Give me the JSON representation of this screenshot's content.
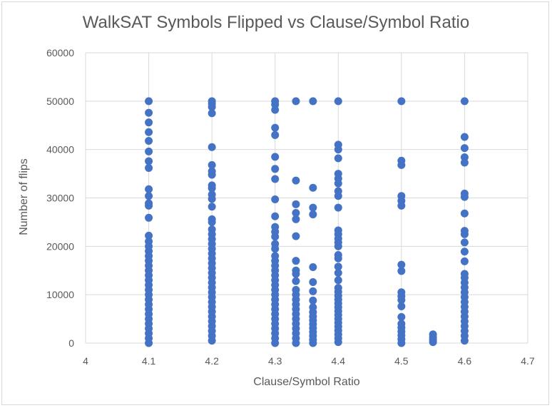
{
  "chart_data": {
    "type": "scatter",
    "title": "WalkSAT Symbols Flipped vs Clause/Symbol Ratio",
    "xlabel": "Clause/Symbol Ratio",
    "ylabel": "Number of flips",
    "xlim": [
      4,
      4.7
    ],
    "ylim": [
      0,
      60000
    ],
    "x_ticks": [
      "4",
      "4.1",
      "4.2",
      "4.3",
      "4.4",
      "4.5",
      "4.6",
      "4.7"
    ],
    "y_ticks": [
      "0",
      "10000",
      "20000",
      "30000",
      "40000",
      "50000",
      "60000"
    ],
    "grid": "major-both",
    "marker_color": "#4472C4",
    "series": [
      {
        "points": [
          [
            4.1,
            50000
          ],
          [
            4.1,
            47600
          ],
          [
            4.1,
            45600
          ],
          [
            4.1,
            43600
          ],
          [
            4.1,
            41800
          ],
          [
            4.1,
            39600
          ],
          [
            4.1,
            37600
          ],
          [
            4.1,
            36200
          ],
          [
            4.1,
            31800
          ],
          [
            4.1,
            30400
          ],
          [
            4.1,
            28900
          ],
          [
            4.1,
            28400
          ],
          [
            4.1,
            25900
          ],
          [
            4.1,
            22200
          ],
          [
            4.1,
            21000
          ],
          [
            4.1,
            20000
          ],
          [
            4.1,
            19000
          ],
          [
            4.1,
            18000
          ],
          [
            4.1,
            17000
          ],
          [
            4.1,
            16000
          ],
          [
            4.1,
            15000
          ],
          [
            4.1,
            14000
          ],
          [
            4.1,
            13000
          ],
          [
            4.1,
            12000
          ],
          [
            4.1,
            11000
          ],
          [
            4.1,
            10000
          ],
          [
            4.1,
            9000
          ],
          [
            4.1,
            8000
          ],
          [
            4.1,
            7000
          ],
          [
            4.1,
            6000
          ],
          [
            4.1,
            5000
          ],
          [
            4.1,
            4000
          ],
          [
            4.1,
            3000
          ],
          [
            4.1,
            2000
          ],
          [
            4.1,
            1000
          ],
          [
            4.1,
            0
          ],
          [
            4.2,
            50000
          ],
          [
            4.2,
            49500
          ],
          [
            4.2,
            48800
          ],
          [
            4.2,
            47500
          ],
          [
            4.2,
            40500
          ],
          [
            4.2,
            36800
          ],
          [
            4.2,
            35500
          ],
          [
            4.2,
            34800
          ],
          [
            4.2,
            32600
          ],
          [
            4.2,
            32000
          ],
          [
            4.2,
            30700
          ],
          [
            4.2,
            29800
          ],
          [
            4.2,
            28200
          ],
          [
            4.2,
            25600
          ],
          [
            4.2,
            25000
          ],
          [
            4.2,
            23500
          ],
          [
            4.2,
            22500
          ],
          [
            4.2,
            21500
          ],
          [
            4.2,
            20500
          ],
          [
            4.2,
            19500
          ],
          [
            4.2,
            18500
          ],
          [
            4.2,
            17500
          ],
          [
            4.2,
            16500
          ],
          [
            4.2,
            15500
          ],
          [
            4.2,
            14500
          ],
          [
            4.2,
            13500
          ],
          [
            4.2,
            12500
          ],
          [
            4.2,
            11500
          ],
          [
            4.2,
            10500
          ],
          [
            4.2,
            9500
          ],
          [
            4.2,
            8500
          ],
          [
            4.2,
            7500
          ],
          [
            4.2,
            6500
          ],
          [
            4.2,
            5500
          ],
          [
            4.2,
            4500
          ],
          [
            4.2,
            3500
          ],
          [
            4.2,
            2500
          ],
          [
            4.2,
            1500
          ],
          [
            4.2,
            500
          ],
          [
            4.3,
            50000
          ],
          [
            4.3,
            49300
          ],
          [
            4.3,
            48200
          ],
          [
            4.3,
            44500
          ],
          [
            4.3,
            43000
          ],
          [
            4.3,
            38500
          ],
          [
            4.3,
            36000
          ],
          [
            4.3,
            33900
          ],
          [
            4.3,
            29700
          ],
          [
            4.3,
            26200
          ],
          [
            4.3,
            24000
          ],
          [
            4.3,
            23000
          ],
          [
            4.3,
            22000
          ],
          [
            4.3,
            20500
          ],
          [
            4.3,
            19500
          ],
          [
            4.3,
            18000
          ],
          [
            4.3,
            17000
          ],
          [
            4.3,
            16000
          ],
          [
            4.3,
            15000
          ],
          [
            4.3,
            14000
          ],
          [
            4.3,
            13000
          ],
          [
            4.3,
            12000
          ],
          [
            4.3,
            11000
          ],
          [
            4.3,
            10000
          ],
          [
            4.3,
            9000
          ],
          [
            4.3,
            8000
          ],
          [
            4.3,
            7000
          ],
          [
            4.3,
            6000
          ],
          [
            4.3,
            5000
          ],
          [
            4.3,
            4000
          ],
          [
            4.3,
            3000
          ],
          [
            4.3,
            2000
          ],
          [
            4.3,
            1000
          ],
          [
            4.3,
            0
          ],
          [
            4.333,
            50000
          ],
          [
            4.333,
            33600
          ],
          [
            4.333,
            28700
          ],
          [
            4.333,
            26900
          ],
          [
            4.333,
            25600
          ],
          [
            4.333,
            22100
          ],
          [
            4.333,
            17000
          ],
          [
            4.333,
            15000
          ],
          [
            4.333,
            14300
          ],
          [
            4.333,
            12800
          ],
          [
            4.333,
            11000
          ],
          [
            4.333,
            10000
          ],
          [
            4.333,
            9000
          ],
          [
            4.333,
            8000
          ],
          [
            4.333,
            7000
          ],
          [
            4.333,
            6000
          ],
          [
            4.333,
            5000
          ],
          [
            4.333,
            4000
          ],
          [
            4.333,
            3000
          ],
          [
            4.333,
            2000
          ],
          [
            4.333,
            1000
          ],
          [
            4.333,
            0
          ],
          [
            4.36,
            50000
          ],
          [
            4.36,
            32100
          ],
          [
            4.36,
            28000
          ],
          [
            4.36,
            26600
          ],
          [
            4.36,
            15700
          ],
          [
            4.36,
            12600
          ],
          [
            4.36,
            10700
          ],
          [
            4.36,
            8800
          ],
          [
            4.36,
            7400
          ],
          [
            4.36,
            6400
          ],
          [
            4.36,
            5500
          ],
          [
            4.36,
            4700
          ],
          [
            4.36,
            3900
          ],
          [
            4.36,
            3100
          ],
          [
            4.36,
            2300
          ],
          [
            4.36,
            1500
          ],
          [
            4.36,
            700
          ],
          [
            4.36,
            0
          ],
          [
            4.4,
            50000
          ],
          [
            4.4,
            41000
          ],
          [
            4.4,
            40000
          ],
          [
            4.4,
            38200
          ],
          [
            4.4,
            35000
          ],
          [
            4.4,
            34000
          ],
          [
            4.4,
            33000
          ],
          [
            4.4,
            31400
          ],
          [
            4.4,
            30400
          ],
          [
            4.4,
            28000
          ],
          [
            4.4,
            23300
          ],
          [
            4.4,
            22500
          ],
          [
            4.4,
            21600
          ],
          [
            4.4,
            20800
          ],
          [
            4.4,
            20000
          ],
          [
            4.4,
            18200
          ],
          [
            4.4,
            17500
          ],
          [
            4.4,
            15800
          ],
          [
            4.4,
            14500
          ],
          [
            4.4,
            13000
          ],
          [
            4.4,
            11400
          ],
          [
            4.4,
            10600
          ],
          [
            4.4,
            9800
          ],
          [
            4.4,
            9000
          ],
          [
            4.4,
            8200
          ],
          [
            4.4,
            7400
          ],
          [
            4.4,
            6600
          ],
          [
            4.4,
            5800
          ],
          [
            4.4,
            5000
          ],
          [
            4.4,
            4200
          ],
          [
            4.4,
            3400
          ],
          [
            4.4,
            2600
          ],
          [
            4.4,
            1800
          ],
          [
            4.4,
            1000
          ],
          [
            4.4,
            200
          ],
          [
            4.5,
            50000
          ],
          [
            4.5,
            37700
          ],
          [
            4.5,
            36800
          ],
          [
            4.5,
            30400
          ],
          [
            4.5,
            29400
          ],
          [
            4.5,
            28400
          ],
          [
            4.5,
            16200
          ],
          [
            4.5,
            14900
          ],
          [
            4.5,
            10500
          ],
          [
            4.5,
            9700
          ],
          [
            4.5,
            8900
          ],
          [
            4.5,
            7600
          ],
          [
            4.5,
            5400
          ],
          [
            4.5,
            4000
          ],
          [
            4.5,
            3200
          ],
          [
            4.5,
            2400
          ],
          [
            4.5,
            1600
          ],
          [
            4.5,
            800
          ],
          [
            4.5,
            0
          ],
          [
            4.55,
            1800
          ],
          [
            4.55,
            1200
          ],
          [
            4.55,
            700
          ],
          [
            4.55,
            200
          ],
          [
            4.6,
            50000
          ],
          [
            4.6,
            42600
          ],
          [
            4.6,
            40300
          ],
          [
            4.6,
            38400
          ],
          [
            4.6,
            37300
          ],
          [
            4.6,
            30900
          ],
          [
            4.6,
            30200
          ],
          [
            4.6,
            26800
          ],
          [
            4.6,
            23200
          ],
          [
            4.6,
            22500
          ],
          [
            4.6,
            20800
          ],
          [
            4.6,
            18900
          ],
          [
            4.6,
            16900
          ],
          [
            4.6,
            14300
          ],
          [
            4.6,
            13500
          ],
          [
            4.6,
            12500
          ],
          [
            4.6,
            11500
          ],
          [
            4.6,
            10500
          ],
          [
            4.6,
            9500
          ],
          [
            4.6,
            8500
          ],
          [
            4.6,
            7500
          ],
          [
            4.6,
            6500
          ],
          [
            4.6,
            5500
          ],
          [
            4.6,
            4500
          ],
          [
            4.6,
            3500
          ],
          [
            4.6,
            2500
          ],
          [
            4.6,
            1500
          ],
          [
            4.6,
            500
          ]
        ]
      }
    ]
  }
}
